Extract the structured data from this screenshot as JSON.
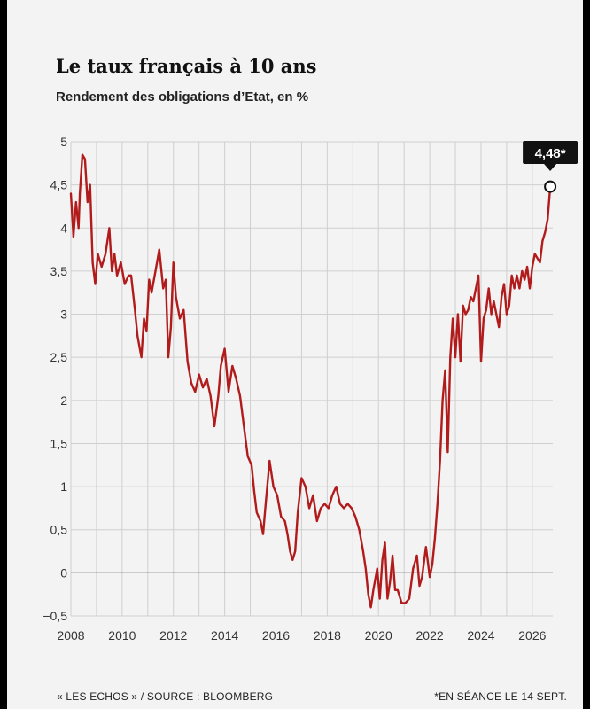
{
  "title": "Le taux français à 10 ans",
  "subtitle": "Rendement des obligations d’Etat, en %",
  "source": "« LES ECHOS » / SOURCE : BLOOMBERG",
  "footnote": "*EN SÉANCE LE 14 SEPT.",
  "colors": {
    "line": "#b21b1b",
    "background": "#f3f3f3",
    "grid": "#cfcfcf",
    "text": "#222222"
  },
  "chart_data": {
    "type": "line",
    "xlim": [
      2008,
      2026.8
    ],
    "ylim": [
      -0.5,
      5
    ],
    "yticks": [
      -0.5,
      0,
      0.5,
      1,
      1.5,
      2,
      2.5,
      3,
      3.5,
      4,
      4.5,
      5
    ],
    "ytick_labels": [
      "−0,5",
      "0",
      "0,5",
      "1",
      "1,5",
      "2",
      "2,5",
      "3",
      "3,5",
      "4",
      "4,5",
      "5"
    ],
    "xticks": [
      2008,
      2010,
      2012,
      2014,
      2016,
      2018,
      2020,
      2022,
      2024,
      2026
    ],
    "xtick_labels": [
      "2008",
      "2010",
      "2012",
      "2014",
      "2016",
      "2018",
      "2020",
      "2022",
      "2024",
      "2026"
    ],
    "grid": true,
    "annotation": {
      "x": 2026.7,
      "y": 4.48,
      "label": "4,48*"
    },
    "series": [
      {
        "x": [
          2008.0,
          2008.1,
          2008.2,
          2008.3,
          2008.35,
          2008.45,
          2008.55,
          2008.65,
          2008.75,
          2008.85,
          2008.95,
          2009.05,
          2009.2,
          2009.35,
          2009.5,
          2009.6,
          2009.7,
          2009.8,
          2009.95,
          2010.1,
          2010.25,
          2010.35,
          2010.5,
          2010.6,
          2010.75,
          2010.85,
          2010.95,
          2011.05,
          2011.15,
          2011.3,
          2011.45,
          2011.6,
          2011.7,
          2011.8,
          2011.9,
          2012.0,
          2012.1,
          2012.25,
          2012.4,
          2012.55,
          2012.7,
          2012.85,
          2013.0,
          2013.15,
          2013.3,
          2013.45,
          2013.6,
          2013.75,
          2013.85,
          2014.0,
          2014.15,
          2014.3,
          2014.45,
          2014.6,
          2014.75,
          2014.9,
          2015.05,
          2015.15,
          2015.25,
          2015.4,
          2015.5,
          2015.6,
          2015.75,
          2015.9,
          2016.05,
          2016.2,
          2016.35,
          2016.45,
          2016.55,
          2016.65,
          2016.75,
          2016.85,
          2017.0,
          2017.15,
          2017.3,
          2017.45,
          2017.6,
          2017.75,
          2017.9,
          2018.05,
          2018.2,
          2018.35,
          2018.5,
          2018.65,
          2018.8,
          2018.95,
          2019.1,
          2019.25,
          2019.4,
          2019.5,
          2019.6,
          2019.7,
          2019.8,
          2019.95,
          2020.05,
          2020.15,
          2020.25,
          2020.35,
          2020.45,
          2020.55,
          2020.65,
          2020.75,
          2020.9,
          2021.05,
          2021.2,
          2021.35,
          2021.5,
          2021.6,
          2021.7,
          2021.85,
          2022.0,
          2022.1,
          2022.2,
          2022.3,
          2022.4,
          2022.5,
          2022.6,
          2022.7,
          2022.8,
          2022.9,
          2023.0,
          2023.1,
          2023.2,
          2023.3,
          2023.4,
          2023.5,
          2023.6,
          2023.7,
          2023.8,
          2023.9,
          2024.0,
          2024.1,
          2024.2,
          2024.3,
          2024.4,
          2024.5,
          2024.6,
          2024.7,
          2024.8,
          2024.9,
          2025.0,
          2025.1,
          2025.2,
          2025.3,
          2025.4,
          2025.5,
          2025.6,
          2025.7,
          2025.8,
          2025.9,
          2026.0,
          2026.1,
          2026.2,
          2026.3,
          2026.4,
          2026.5,
          2026.6,
          2026.7
        ],
        "y": [
          4.4,
          3.9,
          4.3,
          4.0,
          4.4,
          4.85,
          4.8,
          4.3,
          4.5,
          3.6,
          3.35,
          3.7,
          3.55,
          3.7,
          4.0,
          3.5,
          3.7,
          3.45,
          3.6,
          3.35,
          3.45,
          3.45,
          3.05,
          2.75,
          2.5,
          2.95,
          2.8,
          3.4,
          3.25,
          3.5,
          3.75,
          3.3,
          3.4,
          2.5,
          2.85,
          3.6,
          3.2,
          2.95,
          3.05,
          2.45,
          2.2,
          2.1,
          2.3,
          2.15,
          2.25,
          2.05,
          1.7,
          2.05,
          2.4,
          2.6,
          2.1,
          2.4,
          2.25,
          2.05,
          1.7,
          1.35,
          1.25,
          0.95,
          0.7,
          0.6,
          0.45,
          0.8,
          1.3,
          1.0,
          0.9,
          0.65,
          0.6,
          0.45,
          0.25,
          0.15,
          0.25,
          0.7,
          1.1,
          1.0,
          0.75,
          0.9,
          0.6,
          0.75,
          0.8,
          0.75,
          0.9,
          1.0,
          0.8,
          0.75,
          0.8,
          0.75,
          0.65,
          0.5,
          0.25,
          0.05,
          -0.25,
          -0.4,
          -0.2,
          0.05,
          -0.3,
          0.15,
          0.35,
          -0.3,
          -0.1,
          0.2,
          -0.2,
          -0.2,
          -0.35,
          -0.35,
          -0.3,
          0.05,
          0.2,
          -0.15,
          -0.05,
          0.3,
          -0.05,
          0.1,
          0.4,
          0.8,
          1.3,
          2.0,
          2.35,
          1.4,
          2.5,
          2.95,
          2.5,
          3.0,
          2.45,
          3.1,
          3.0,
          3.05,
          3.2,
          3.15,
          3.3,
          3.45,
          2.45,
          2.95,
          3.05,
          3.3,
          3.0,
          3.15,
          3.0,
          2.85,
          3.2,
          3.35,
          3.0,
          3.1,
          3.45,
          3.3,
          3.45,
          3.3,
          3.5,
          3.4,
          3.55,
          3.3,
          3.55,
          3.7,
          3.65,
          3.6,
          3.85,
          3.95,
          4.1,
          4.48
        ]
      }
    ]
  }
}
